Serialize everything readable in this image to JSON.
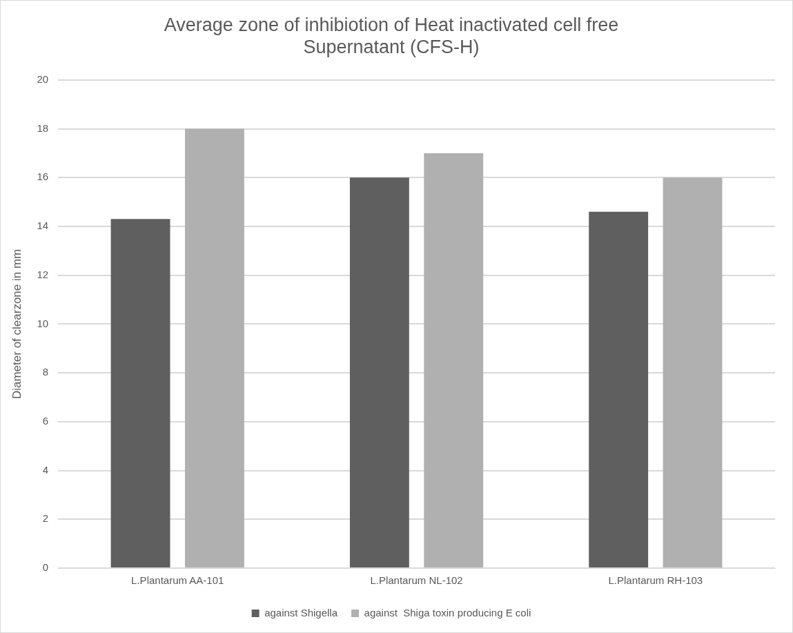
{
  "chart_data": {
    "type": "bar",
    "title": "Average zone of inhibiotion of Heat inactivated cell free Supernatant (CFS-H)",
    "ylabel": "Diameter of clearzone in mm",
    "categories": [
      "L.Plantarum AA-101",
      "L.Plantarum NL-102",
      "L.Plantarum RH-103"
    ],
    "series": [
      {
        "name": "against Shigella",
        "color": "#5f5f5f",
        "values": [
          14.3,
          16,
          14.6
        ]
      },
      {
        "name": "against  Shiga toxin producing E coli",
        "color": "#b0b0b0",
        "values": [
          18,
          17,
          16
        ]
      }
    ],
    "ylim": [
      0,
      20
    ],
    "yticks": [
      0,
      2,
      4,
      6,
      8,
      10,
      12,
      14,
      16,
      18,
      20
    ],
    "grid": "y",
    "legend": "bottom"
  }
}
